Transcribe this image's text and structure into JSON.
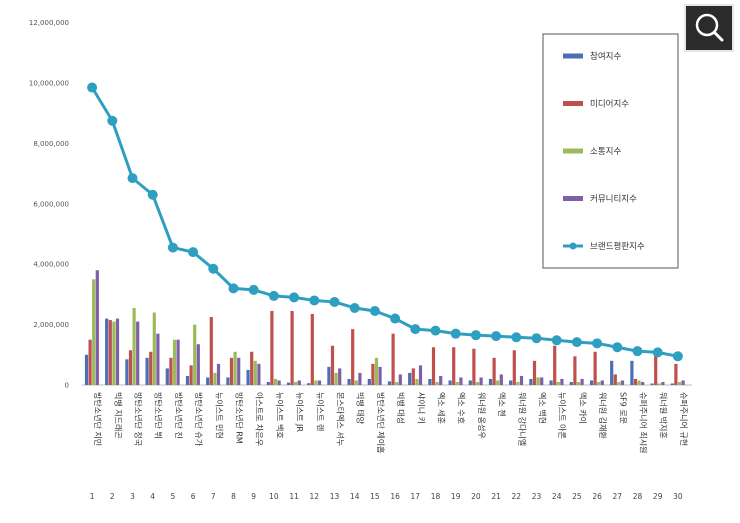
{
  "ui": {
    "zoom_icon": "search-icon"
  },
  "chart_data": {
    "type": "bar",
    "title": "",
    "xlabel": "",
    "ylabel": "",
    "ylim": [
      0,
      12000000
    ],
    "yticks": [
      "0",
      "2,000,000",
      "4,000,000",
      "6,000,000",
      "8,000,000",
      "10,000,000",
      "12,000,000"
    ],
    "grid": false,
    "legend_position": "top-right",
    "ranks": [
      "1",
      "2",
      "3",
      "4",
      "5",
      "6",
      "7",
      "8",
      "9",
      "10",
      "11",
      "12",
      "13",
      "14",
      "15",
      "16",
      "17",
      "18",
      "19",
      "20",
      "21",
      "22",
      "23",
      "24",
      "25",
      "26",
      "27",
      "28",
      "29",
      "30"
    ],
    "categories": [
      "방탄소년단 지민",
      "빅뱅 지드래곤",
      "방탄소년단 정국",
      "방탄소년단 뷔",
      "방탄소년단 진",
      "방탄소년단 슈가",
      "뉴이스트 민현",
      "방탄소년단 RM",
      "아스트로 차은우",
      "뉴이스트 백호",
      "뉴이스트 JR",
      "뉴이스트 렌",
      "몬스타엑스 셔누",
      "빅뱅 태양",
      "방탄소년단 제이홉",
      "빅뱅 대성",
      "샤이니 키",
      "엑소 세훈",
      "엑소 수호",
      "워너원 옹성우",
      "엑소 첸",
      "워너원 강다니엘",
      "엑소 백현",
      "뉴이스트 아론",
      "엑소 카이",
      "워너원 김재환",
      "SF9 로운",
      "슈퍼주니어 최시원",
      "워너원 박지훈",
      "슈퍼주니어 규현"
    ],
    "series": [
      {
        "name": "참여지수",
        "type": "bar",
        "color": "#4a6fb5",
        "values": [
          1000000,
          2200000,
          850000,
          900000,
          550000,
          300000,
          250000,
          250000,
          500000,
          100000,
          80000,
          60000,
          600000,
          200000,
          200000,
          120000,
          400000,
          200000,
          150000,
          150000,
          200000,
          150000,
          200000,
          150000,
          100000,
          150000,
          800000,
          800000,
          50000,
          50000
        ]
      },
      {
        "name": "미디어지수",
        "type": "bar",
        "color": "#c0504d",
        "values": [
          1500000,
          2150000,
          1150000,
          1100000,
          900000,
          650000,
          2250000,
          900000,
          1100000,
          2450000,
          2450000,
          2350000,
          1300000,
          1850000,
          700000,
          1700000,
          550000,
          1250000,
          1250000,
          1200000,
          900000,
          1150000,
          800000,
          1300000,
          950000,
          1100000,
          350000,
          200000,
          1000000,
          700000
        ]
      },
      {
        "name": "소통지수",
        "type": "bar",
        "color": "#9bbb59",
        "values": [
          3500000,
          2100000,
          2550000,
          2400000,
          1500000,
          2000000,
          400000,
          1100000,
          800000,
          200000,
          100000,
          150000,
          400000,
          150000,
          900000,
          100000,
          200000,
          100000,
          100000,
          100000,
          150000,
          100000,
          250000,
          100000,
          100000,
          100000,
          100000,
          150000,
          50000,
          100000
        ]
      },
      {
        "name": "커뮤니티지수",
        "type": "bar",
        "color": "#7f5fa8",
        "values": [
          3800000,
          2200000,
          2100000,
          1700000,
          1500000,
          1350000,
          700000,
          900000,
          700000,
          150000,
          150000,
          150000,
          550000,
          400000,
          600000,
          350000,
          650000,
          300000,
          250000,
          250000,
          350000,
          300000,
          250000,
          200000,
          200000,
          150000,
          150000,
          100000,
          100000,
          150000
        ]
      },
      {
        "name": "브랜드평판지수",
        "type": "line",
        "color": "#2e9fc0",
        "values": [
          9850000,
          8750000,
          6850000,
          6300000,
          4550000,
          4400000,
          3850000,
          3200000,
          3150000,
          2950000,
          2900000,
          2800000,
          2750000,
          2550000,
          2450000,
          2200000,
          1850000,
          1800000,
          1700000,
          1650000,
          1620000,
          1580000,
          1550000,
          1480000,
          1420000,
          1380000,
          1250000,
          1120000,
          1080000,
          950000
        ]
      }
    ]
  }
}
